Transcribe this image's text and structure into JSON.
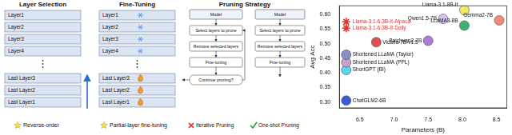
{
  "diagram": {
    "layer_selection": {
      "title": "Layer Selection",
      "layers": [
        "Layer1",
        "Layer2",
        "Layer3",
        "Layer4"
      ],
      "last_layers": [
        "Last Layer3",
        "Last Layer2",
        "Last Layer1"
      ],
      "caption": "Reverse-order"
    },
    "fine_tuning": {
      "title": "Fine-Tuning",
      "layers": [
        "Layer1",
        "Layer2",
        "Layer3",
        "Layer4"
      ],
      "last_layers": [
        "Last Layer3",
        "Last Layer2",
        "Last Layer1"
      ],
      "caption": "Partial-layer fine-tuning"
    },
    "pruning_strategy": {
      "title": "Pruning Strategy",
      "iterative": {
        "steps": [
          "Model",
          "Select layers to prune",
          "Remove selected layers",
          "Fine-tuning",
          "Continue pruning?"
        ],
        "caption": "Iterative Pruning"
      },
      "one_shot": {
        "steps": [
          "Model",
          "Select layers to prune",
          "Remove selected layers",
          "Fine-tuning"
        ],
        "caption": "One-shot Pruning"
      }
    }
  },
  "chart_data": {
    "type": "scatter",
    "x_label": "Parameters (B)",
    "y_label": "Avg Acc",
    "xlim": [
      6.2,
      8.65
    ],
    "xticks": [
      6.5,
      {
        "value": 7.0,
        "label": "7.0"
      },
      7.5,
      {
        "value": 8.0,
        "label": "8.0"
      },
      8.5
    ],
    "ylim": [
      0.28,
      0.63
    ],
    "yticks": [
      {
        "value": 0.3,
        "label": "0.30"
      },
      0.35,
      {
        "value": 0.4,
        "label": "0.40"
      },
      0.45,
      {
        "value": 0.5,
        "label": "0.50"
      },
      0.55,
      {
        "value": 0.6,
        "label": "0.60"
      }
    ],
    "grid": false,
    "series": [
      {
        "name": "Llama-3.1-6.3B-It-Alpaca",
        "color": "#e8312f",
        "marker": "star",
        "x": [
          6.3
        ],
        "values": [
          0.575
        ]
      },
      {
        "name": "Llama-3.1-6.3B-It-Dolly",
        "color": "#e8312f",
        "marker": "star",
        "x": [
          6.3
        ],
        "values": [
          0.553
        ]
      },
      {
        "name": "Qwen1.5-7B",
        "color": "#d6c4ef",
        "marker": "circle",
        "x": [
          7.72
        ],
        "values": [
          0.585
        ]
      },
      {
        "name": "Llama-3.1-8B-It",
        "color": "#f5e663",
        "marker": "circle",
        "x": [
          8.03
        ],
        "values": [
          0.615
        ]
      },
      {
        "name": "Gemma2-7B",
        "color": "#f08c7c",
        "marker": "circle",
        "x": [
          8.54
        ],
        "values": [
          0.58
        ]
      },
      {
        "name": "LLaMA3-8B",
        "color": "#3cb371",
        "marker": "circle",
        "x": [
          8.03
        ],
        "values": [
          0.562
        ]
      },
      {
        "name": "Baichuan2-7B",
        "color": "#b07cd8",
        "marker": "circle",
        "x": [
          7.5
        ],
        "values": [
          0.51
        ]
      },
      {
        "name": "Vicuna-7B-v1.5",
        "color": "#e05050",
        "marker": "circle",
        "x": [
          6.74
        ],
        "values": [
          0.505
        ]
      },
      {
        "name": "Shortened LLaMA (Taylor)",
        "color": "#8c8cc8",
        "marker": "circle",
        "x": [
          6.3
        ],
        "values": [
          0.462
        ]
      },
      {
        "name": "Shortened LLaMA (PPL)",
        "color": "#c8a0c8",
        "marker": "circle",
        "x": [
          6.3
        ],
        "values": [
          0.436
        ]
      },
      {
        "name": "ShortGPT (BI)",
        "color": "#5bd6f0",
        "marker": "circle",
        "x": [
          6.3
        ],
        "values": [
          0.41
        ]
      },
      {
        "name": "ChatGLM2-6B",
        "color": "#3a5bd9",
        "marker": "circle",
        "x": [
          6.3
        ],
        "values": [
          0.305
        ]
      }
    ]
  }
}
